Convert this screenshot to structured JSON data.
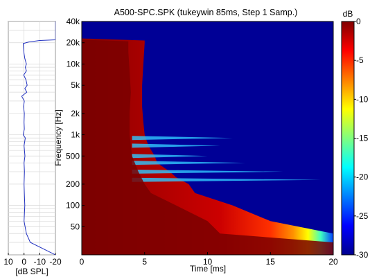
{
  "chart_data": [
    {
      "type": "line",
      "panel": "response",
      "xlabel": "[dB SPL]",
      "x_ticks": [
        "10",
        "0",
        "-10",
        "-20"
      ],
      "x_range": [
        10,
        -20
      ],
      "y_axis": "shared-log-frequency",
      "series": [
        {
          "points": [
            [
              20,
              -20
            ],
            [
              30,
              -4
            ],
            [
              40,
              -1.5
            ],
            [
              60,
              0
            ],
            [
              100,
              -0.5
            ],
            [
              150,
              -0.2
            ],
            [
              200,
              0
            ],
            [
              300,
              -0.3
            ],
            [
              400,
              0
            ],
            [
              500,
              -0.6
            ],
            [
              700,
              0
            ],
            [
              900,
              -0.8
            ],
            [
              1000,
              0.5
            ],
            [
              1200,
              -0.2
            ],
            [
              1500,
              0
            ],
            [
              2000,
              -0.2
            ],
            [
              2500,
              0.3
            ],
            [
              3000,
              -0.2
            ],
            [
              3500,
              1.5
            ],
            [
              4000,
              -1.8
            ],
            [
              4500,
              -0.5
            ],
            [
              5000,
              -2
            ],
            [
              6000,
              -1.2
            ],
            [
              7000,
              0.2
            ],
            [
              8000,
              -1.5
            ],
            [
              9000,
              -0.8
            ],
            [
              10000,
              -1.5
            ],
            [
              12000,
              -0.5
            ],
            [
              14000,
              0
            ],
            [
              17000,
              0.3
            ],
            [
              19500,
              0.5
            ],
            [
              20500,
              -3
            ],
            [
              21500,
              -10
            ],
            [
              22000,
              -20
            ]
          ]
        }
      ]
    },
    {
      "type": "heatmap",
      "panel": "spectrogram",
      "title": "A500-SPC.SPK (tukeywin 85ms, Step 1 Samp.)",
      "xlabel": "Time [ms]",
      "ylabel": "Frequency [Hz]",
      "x_range": [
        0,
        20
      ],
      "x_ticks": [
        "0",
        "5",
        "10",
        "15",
        "20"
      ],
      "y_scale": "log",
      "y_range": [
        20,
        40000
      ],
      "y_ticks": [
        {
          "value": 50,
          "label": "50"
        },
        {
          "value": 100,
          "label": "100"
        },
        {
          "value": 200,
          "label": "200"
        },
        {
          "value": 500,
          "label": "500"
        },
        {
          "value": 1000,
          "label": "1k"
        },
        {
          "value": 2000,
          "label": "2k"
        },
        {
          "value": 5000,
          "label": "5k"
        },
        {
          "value": 10000,
          "label": "10k"
        },
        {
          "value": 20000,
          "label": "20k"
        },
        {
          "value": 40000,
          "label": "40k"
        }
      ],
      "colorbar": {
        "unit": "dB",
        "range": [
          -30,
          0
        ],
        "ticks": [
          "0",
          "-5",
          "-10",
          "-15",
          "-20",
          "-25",
          "-30"
        ]
      },
      "decay_edge_ms": [
        [
          20,
          20
        ],
        [
          28,
          20
        ],
        [
          40,
          20
        ],
        [
          60,
          15
        ],
        [
          100,
          12
        ],
        [
          150,
          9
        ],
        [
          200,
          8.5
        ],
        [
          250,
          7.5
        ],
        [
          300,
          7
        ],
        [
          400,
          6
        ],
        [
          500,
          5.8
        ],
        [
          700,
          5.3
        ],
        [
          1000,
          5
        ],
        [
          1500,
          4.9
        ],
        [
          2500,
          4.8
        ],
        [
          5000,
          4.8
        ],
        [
          10000,
          4.9
        ],
        [
          20000,
          5
        ],
        [
          21500,
          5
        ],
        [
          23000,
          0
        ]
      ],
      "dark_core_ms": [
        [
          20,
          20
        ],
        [
          30,
          20
        ],
        [
          40,
          11
        ],
        [
          60,
          10
        ],
        [
          100,
          7.5
        ],
        [
          150,
          5.5
        ],
        [
          200,
          5
        ],
        [
          300,
          4.5
        ],
        [
          500,
          4
        ],
        [
          1000,
          3.8
        ],
        [
          2000,
          3.8
        ],
        [
          4000,
          3.9
        ],
        [
          8000,
          3.8
        ],
        [
          15000,
          3.7
        ],
        [
          21000,
          3.7
        ],
        [
          22000,
          0
        ]
      ],
      "resonance_streaks": [
        {
          "freq_hz": 900,
          "end_ms": 12
        },
        {
          "freq_hz": 700,
          "end_ms": 11
        },
        {
          "freq_hz": 500,
          "end_ms": 10
        },
        {
          "freq_hz": 400,
          "end_ms": 13
        },
        {
          "freq_hz": 300,
          "end_ms": 16
        },
        {
          "freq_hz": 230,
          "end_ms": 19
        }
      ]
    }
  ]
}
